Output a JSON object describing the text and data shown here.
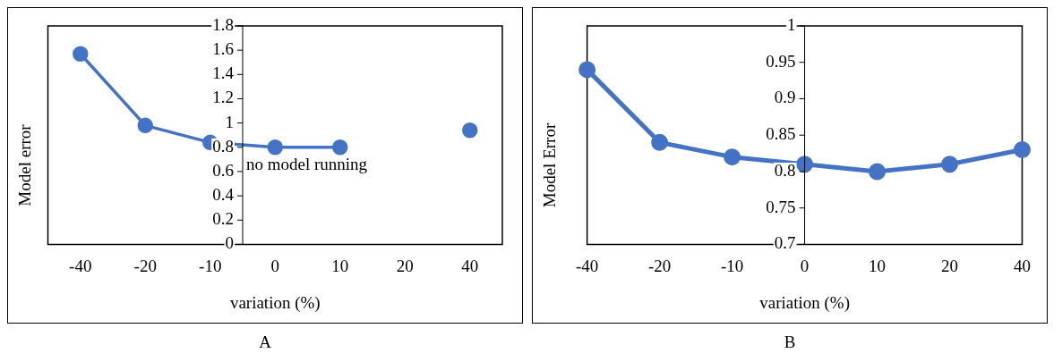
{
  "chart_data": [
    {
      "type": "line",
      "title": "A",
      "xlabel": "variation (%)",
      "ylabel": "Model error",
      "categories": [
        "-40",
        "-20",
        "-10",
        "0",
        "10",
        "20",
        "40"
      ],
      "series": [
        {
          "color": "#4472c4",
          "values": [
            1.57,
            0.98,
            0.84,
            0.8,
            0.8,
            null,
            0.94
          ]
        }
      ],
      "ylim": [
        0,
        1.8
      ],
      "yticks": [
        0,
        0.2,
        0.4,
        0.6,
        0.8,
        1,
        1.2,
        1.4,
        1.6,
        1.8
      ],
      "grid": false,
      "legend": false,
      "marker": "circle",
      "line_style": "solid",
      "annotations": [
        "no model running"
      ]
    },
    {
      "type": "line",
      "title": "B",
      "xlabel": "variation (%)",
      "ylabel": "Model Error",
      "categories": [
        "-40",
        "-20",
        "-10",
        "0",
        "10",
        "20",
        "40"
      ],
      "series": [
        {
          "color": "#4472c4",
          "values": [
            0.94,
            0.84,
            0.82,
            0.81,
            0.8,
            0.81,
            0.83
          ]
        }
      ],
      "ylim": [
        0.7,
        1
      ],
      "yticks": [
        0.7,
        0.75,
        0.8,
        0.85,
        0.9,
        0.95,
        1
      ],
      "grid": false,
      "legend": false,
      "marker": "circle",
      "line_style": "solid"
    }
  ]
}
